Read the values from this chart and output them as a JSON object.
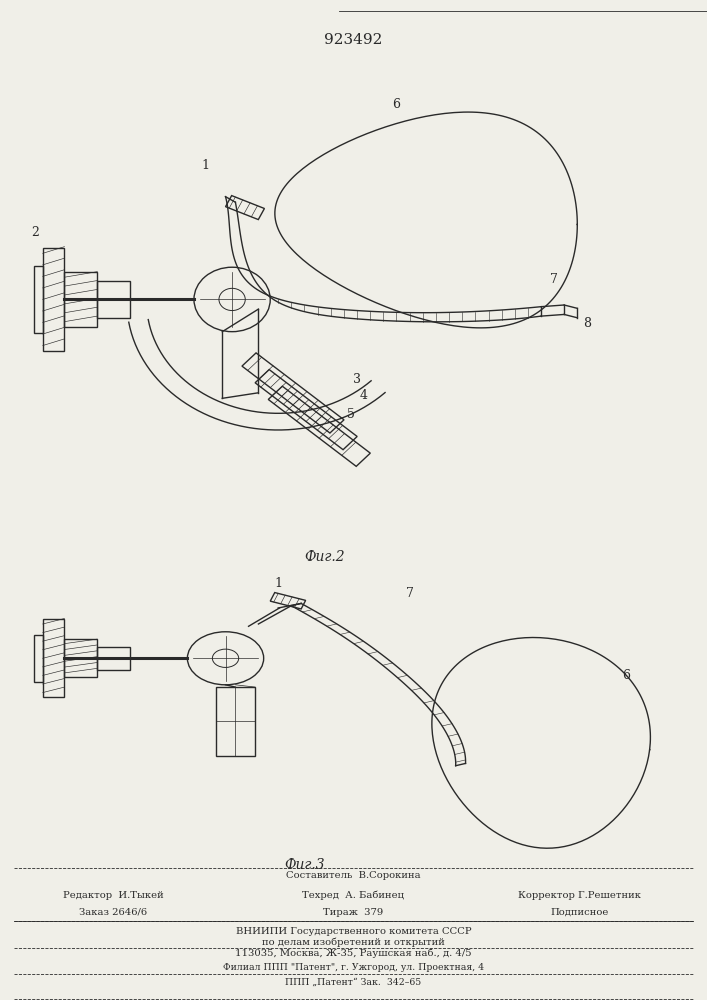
{
  "patent_number": "923492",
  "fig2_label": "Фиг.2",
  "fig3_label": "Фиг.3",
  "bg": "#f0efe8",
  "lc": "#2a2a2a",
  "lw": 1.0,
  "footer": {
    "sestavitel": "Составитель  В.Сорокина",
    "redaktor": "Редактор  И.Тыкей",
    "tekhred": "Техред  А. Бабинец",
    "korrektor": "Корректор Г.Решетник",
    "zakaz": "Заказ 2646/6",
    "tirazh": "Тираж  379",
    "podpisnoe": "Подписное",
    "vniipи": "ВНИИПИ Государственного комитета СССР",
    "po_delam": "по делам изобретений и открытий",
    "address": "113035, Москва, Ж-35, Раушская наб., д. 4/5",
    "filial": "Филиал ППП \"Патент\", г. Ужгород, ул. Проектная, 4",
    "ppp": "ППП „Патент“ Зак.  342–65"
  }
}
